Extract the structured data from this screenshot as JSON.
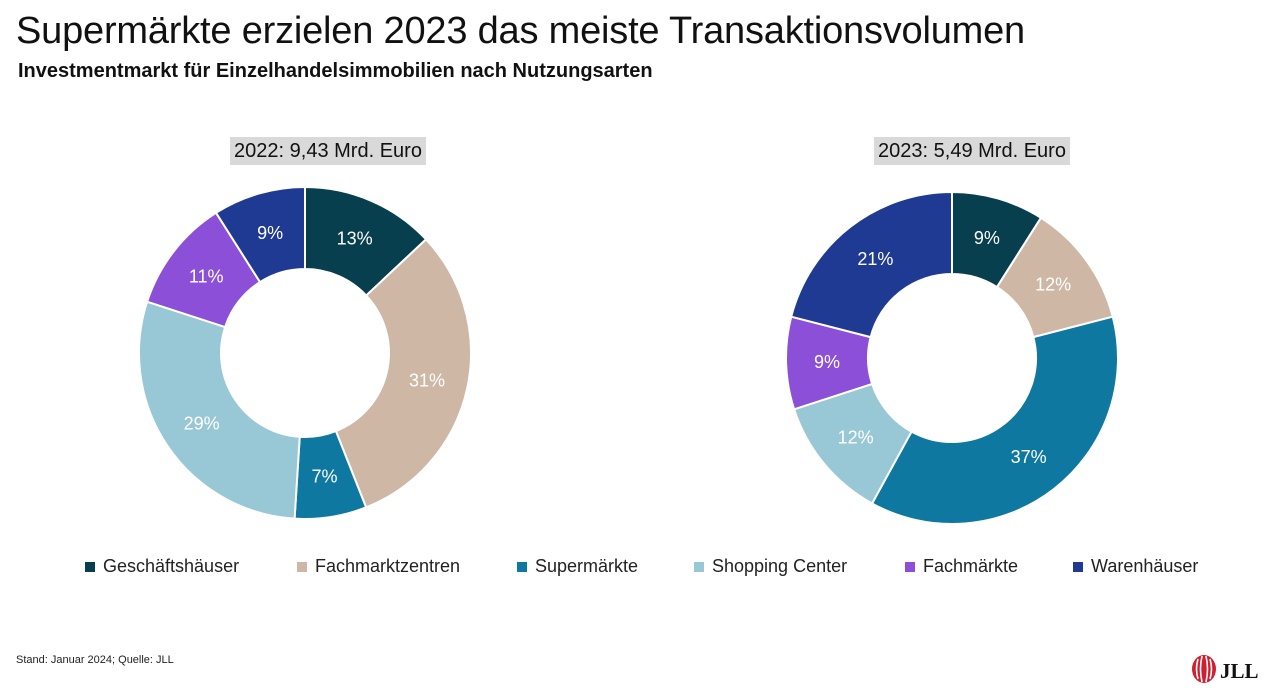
{
  "header": {
    "title": "Supermärkte erzielen 2023 das meiste Transaktionsvolumen",
    "subtitle": "Investmentmarkt für Einzelhandelsimmobilien nach Nutzungsarten"
  },
  "categories": [
    "Geschäftshäuser",
    "Fachmarktzentren",
    "Supermärkte",
    "Shopping Center",
    "Fachmärkte",
    "Warenhäuser"
  ],
  "colors": {
    "Geschäftshäuser": "#073f4e",
    "Fachmarktzentren": "#cfb7a6",
    "Supermärkte": "#0f78a0",
    "Shopping Center": "#98c7d6",
    "Fachmärkte": "#8b4fd8",
    "Warenhäuser": "#1f3a93"
  },
  "chart_data": [
    {
      "type": "pie",
      "title": "2022: 9,43 Mrd. Euro",
      "series": [
        {
          "name": "Geschäftshäuser",
          "value": 13,
          "label": "13%"
        },
        {
          "name": "Fachmarktzentren",
          "value": 31,
          "label": "31%"
        },
        {
          "name": "Supermärkte",
          "value": 7,
          "label": "7%"
        },
        {
          "name": "Shopping Center",
          "value": 29,
          "label": "29%"
        },
        {
          "name": "Fachmärkte",
          "value": 11,
          "label": "11%"
        },
        {
          "name": "Warenhäuser",
          "value": 9,
          "label": "9%"
        }
      ]
    },
    {
      "type": "pie",
      "title": "2023: 5,49 Mrd. Euro",
      "series": [
        {
          "name": "Geschäftshäuser",
          "value": 9,
          "label": "9%"
        },
        {
          "name": "Fachmarktzentren",
          "value": 12,
          "label": "12%"
        },
        {
          "name": "Supermärkte",
          "value": 37,
          "label": "37%"
        },
        {
          "name": "Shopping Center",
          "value": 12,
          "label": "12%"
        },
        {
          "name": "Fachmärkte",
          "value": 9,
          "label": "9%"
        },
        {
          "name": "Warenhäuser",
          "value": 21,
          "label": "21%"
        }
      ]
    }
  ],
  "legend": {
    "placement": "bottom",
    "items": [
      "Geschäftshäuser",
      "Fachmarktzentren",
      "Supermärkte",
      "Shopping Center",
      "Fachmärkte",
      "Warenhäuser"
    ]
  },
  "footnote": "Stand: Januar 2024; Quelle: JLL",
  "logo": {
    "text": "JLL",
    "icon": "jll-logo-icon"
  }
}
